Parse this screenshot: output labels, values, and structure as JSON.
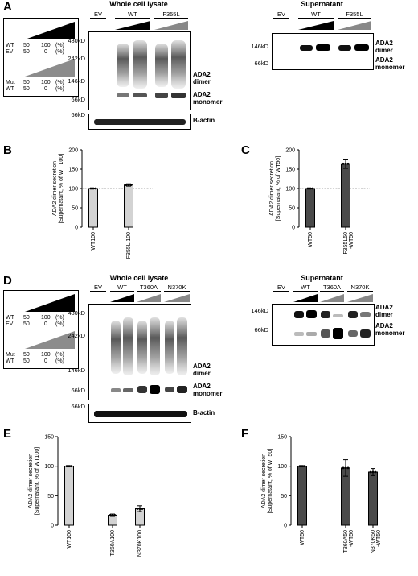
{
  "panels": {
    "A": "A",
    "B": "B",
    "C": "C",
    "D": "D",
    "E": "E",
    "F": "F"
  },
  "panelA": {
    "legend": {
      "wt_row": [
        "WT",
        "50",
        "100",
        "(%)"
      ],
      "ev_row": [
        "EV",
        "50",
        "0",
        "(%)"
      ],
      "mut_row": [
        "Mut",
        "50",
        "100",
        "(%)"
      ],
      "wt2_row": [
        "WT",
        "50",
        "0",
        "(%)"
      ]
    },
    "wcl_title": "Whole cell lysate",
    "sup_title": "Supernatant",
    "lanes": [
      "EV",
      "WT",
      "F355L"
    ],
    "wcl_markers": [
      "480kD",
      "242kD",
      "146kD",
      "66kD"
    ],
    "actin_marker": "66kD",
    "dimer_label": "ADA2\ndimer",
    "monomer_label": "ADA2\nmonomer",
    "actin_label": "B-actin",
    "sup_markers": [
      "146kD",
      "66kD"
    ]
  },
  "panelD": {
    "wcl_title": "Whole cell lysate",
    "sup_title": "Supernatant",
    "lanes": [
      "EV",
      "WT",
      "T360A",
      "N370K"
    ],
    "wcl_markers": [
      "480kD",
      "242kD",
      "146kD",
      "66kD"
    ],
    "actin_marker": "66kD",
    "sup_markers": [
      "146kD",
      "66kD"
    ],
    "dimer_label": "ADA2\ndimer",
    "monomer_label": "ADA2\nmonomer",
    "actin_label": "B-actin"
  },
  "chart_data": [
    {
      "panel": "B",
      "type": "bar",
      "categories": [
        "WT100",
        "F355L 100"
      ],
      "values": [
        100,
        109
      ],
      "errors": [
        1,
        3
      ],
      "ylabel": "ADA2 dimer secretion\n[Supernatant, % of WT 100]",
      "ylim": [
        0,
        200
      ],
      "yticks": [
        0,
        50,
        100,
        150,
        200
      ],
      "reference_line": 100,
      "color": "#d3d3d3"
    },
    {
      "panel": "C",
      "type": "bar",
      "categories": [
        "WT50",
        "F355L50\n-WT50"
      ],
      "values": [
        100,
        164
      ],
      "errors": [
        1,
        12
      ],
      "ylabel": "ADA2 dimer secretion\n[Supernatant, % of WT50]",
      "ylim": [
        0,
        200
      ],
      "yticks": [
        0,
        50,
        100,
        150,
        200
      ],
      "reference_line": 100,
      "color": "#4a4a4a"
    },
    {
      "panel": "E",
      "type": "bar",
      "categories": [
        "WT100",
        "T360A100",
        "N370K100"
      ],
      "values": [
        100,
        17,
        28
      ],
      "errors": [
        1,
        2,
        5
      ],
      "ylabel": "ADA2 dimer secretion\n[Supernatant, % of WT100]",
      "ylim": [
        0,
        150
      ],
      "yticks": [
        0,
        50,
        100,
        150
      ],
      "reference_line": 100,
      "color": "#d3d3d3"
    },
    {
      "panel": "F",
      "type": "bar",
      "categories": [
        "WT50",
        "T360A50\n-WT50",
        "N370K50\n-WT50"
      ],
      "values": [
        100,
        97,
        90
      ],
      "errors": [
        1,
        14,
        6
      ],
      "ylabel": "ADA2 dimer secretion\n[Supernatant, % of WT50]",
      "ylim": [
        0,
        150
      ],
      "yticks": [
        0,
        50,
        100,
        150
      ],
      "reference_line": 100,
      "color": "#4a4a4a"
    }
  ]
}
